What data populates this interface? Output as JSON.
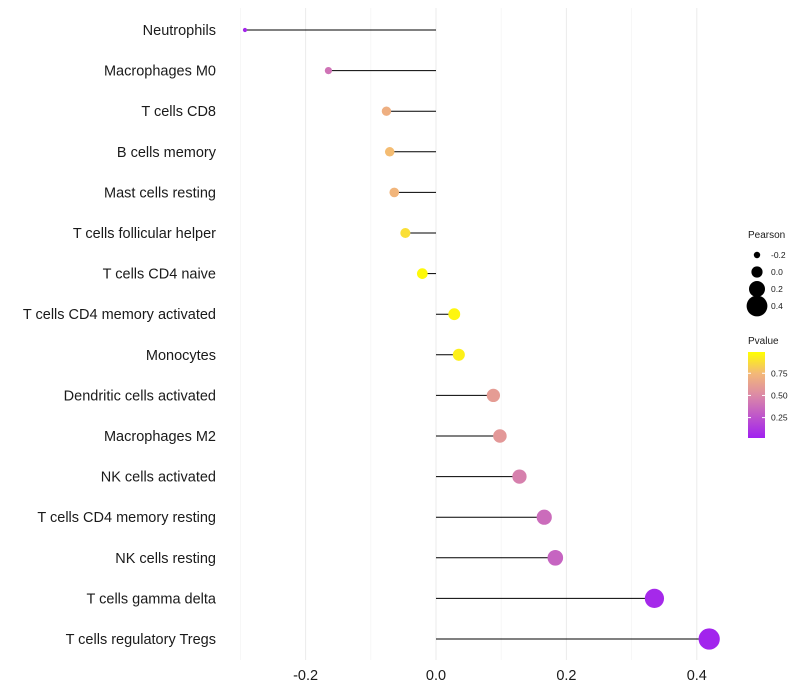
{
  "chart_data": {
    "type": "lollipop",
    "title": "",
    "xlabel": "",
    "ylabel": "",
    "xlim": [
      -0.3,
      0.43
    ],
    "xticks": [
      -0.2,
      0.0,
      0.2,
      0.4
    ],
    "xtick_labels": [
      "-0.2",
      "0.0",
      "0.2",
      "0.4"
    ],
    "categories": [
      "Neutrophils",
      "Macrophages M0",
      "T cells CD8",
      "B cells memory",
      "Mast cells resting",
      "T cells follicular helper",
      "T cells CD4 naive",
      "T cells CD4 memory activated",
      "Monocytes",
      "Dendritic cells activated",
      "Macrophages M2",
      "NK cells activated",
      "T cells CD4 memory resting",
      "NK cells resting",
      "T cells gamma delta",
      "T cells regulatory  Tregs"
    ],
    "pearson": [
      -0.293,
      -0.165,
      -0.076,
      -0.071,
      -0.064,
      -0.047,
      -0.021,
      0.028,
      0.035,
      0.088,
      0.098,
      0.128,
      0.166,
      0.183,
      0.335,
      0.419
    ],
    "pvalue": [
      0.05,
      0.4,
      0.7,
      0.76,
      0.73,
      0.88,
      0.97,
      0.96,
      0.94,
      0.6,
      0.58,
      0.46,
      0.37,
      0.33,
      0.06,
      0.04
    ],
    "legend_size": {
      "title": "Pearson",
      "labels": [
        "-0.2",
        "0.0",
        "0.2",
        "0.4"
      ],
      "values": [
        -0.2,
        0.0,
        0.2,
        0.4
      ]
    },
    "legend_color": {
      "title": "Pvalue",
      "labels": [
        "0.75",
        "0.50",
        "0.25"
      ],
      "values": [
        0.75,
        0.5,
        0.25
      ],
      "range": [
        0.02,
        0.99
      ],
      "low_color": "#a020f0",
      "high_color": "#ffff00"
    },
    "grid": true,
    "legend_position": "right"
  }
}
